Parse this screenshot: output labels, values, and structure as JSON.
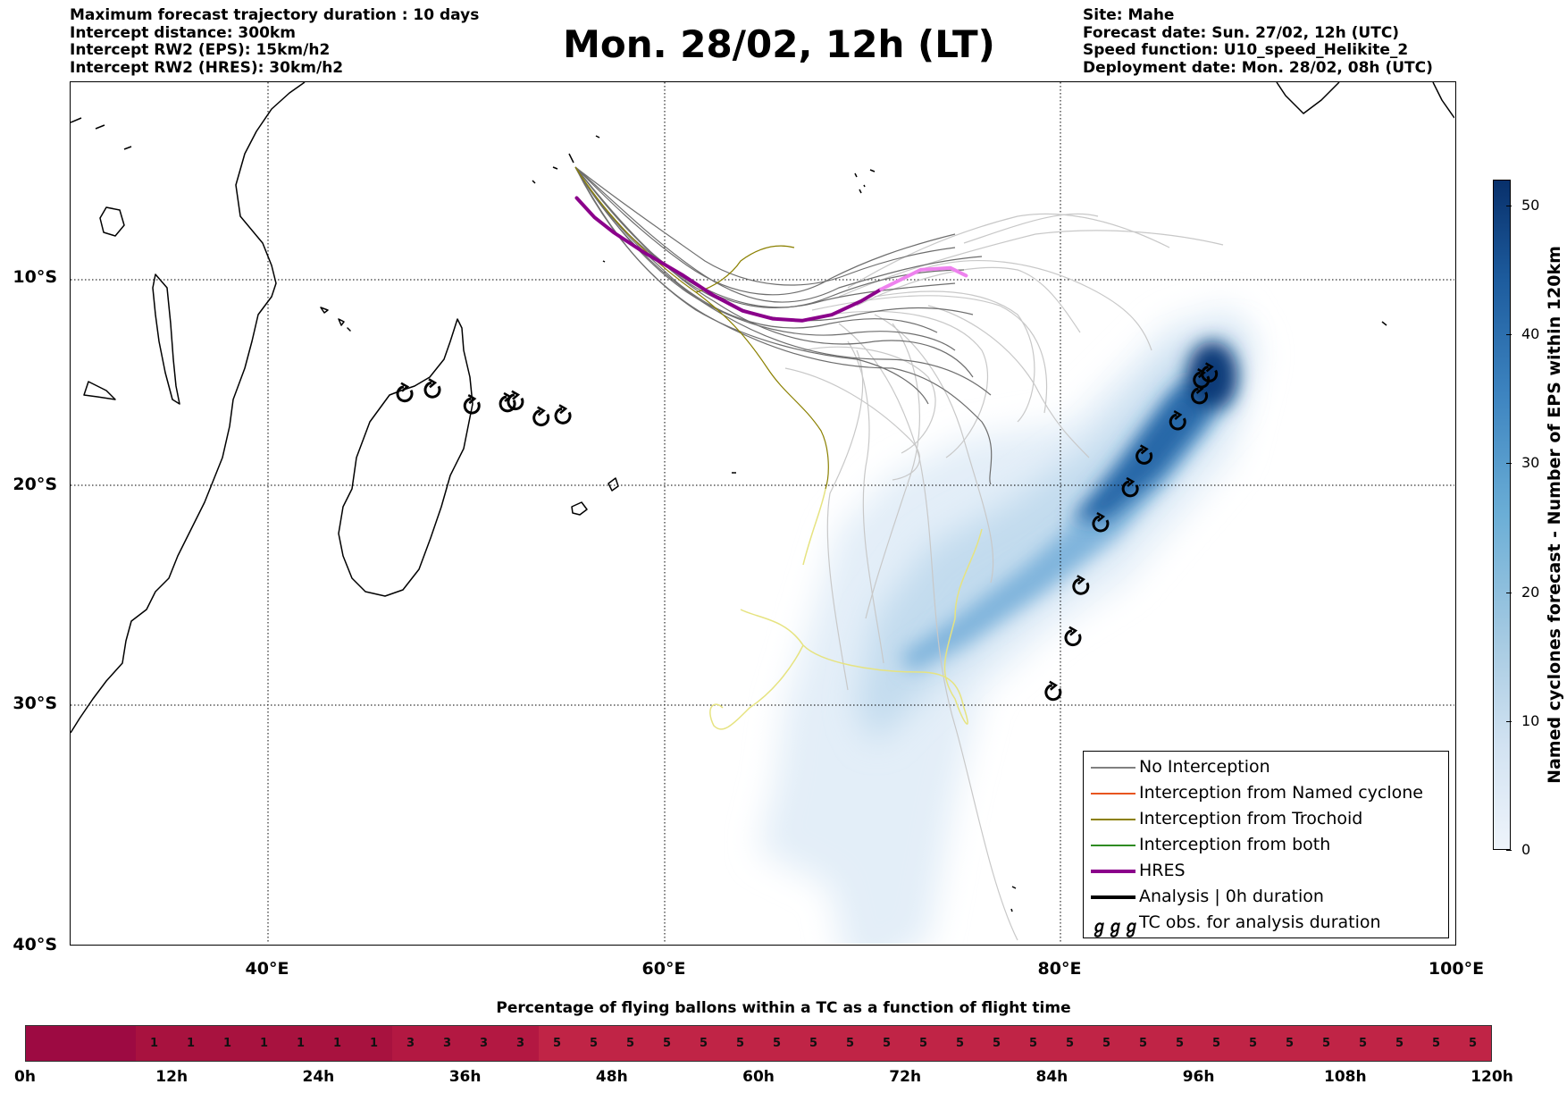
{
  "header_left": {
    "line1": "Maximum forecast trajectory duration : 10 days",
    "line2": "Intercept distance: 300km",
    "line3": "Intercept RW2 (EPS):  15km/h2",
    "line4": "Intercept RW2 (HRES): 30km/h2"
  },
  "title": "Mon. 28/02, 12h (LT)",
  "header_right": {
    "line1": "Site: Mahe",
    "line2": "Forecast date: Sun. 27/02, 12h (UTC)",
    "line3": "Speed function: U10_speed_Helikite_2",
    "line4": "Deployment date: Mon. 28/02, 08h (UTC)"
  },
  "map": {
    "lon_range": [
      30,
      100
    ],
    "lat_range": [
      -40,
      1
    ],
    "lat_labels": [
      "10°S",
      "20°S",
      "30°S",
      "40°S"
    ],
    "lon_labels": [
      "40°E",
      "60°E",
      "80°E",
      "100°E"
    ],
    "gridlines": "dotted",
    "tc_obs_positions": [
      [
        46.9,
        -15.0
      ],
      [
        48.3,
        -14.8
      ],
      [
        50.3,
        -15.6
      ],
      [
        52.1,
        -15.5
      ],
      [
        52.5,
        -15.4
      ],
      [
        53.8,
        -16.2
      ],
      [
        54.9,
        -16.1
      ],
      [
        79.7,
        -29.3
      ],
      [
        80.7,
        -26.8
      ],
      [
        81.1,
        -24.4
      ],
      [
        82.1,
        -21.4
      ],
      [
        83.6,
        -19.7
      ],
      [
        84.3,
        -18.1
      ],
      [
        86.0,
        -16.4
      ],
      [
        87.1,
        -15.1
      ],
      [
        87.2,
        -14.3
      ],
      [
        87.6,
        -14.0
      ]
    ],
    "hres_track": [
      [
        55.6,
        -5.0
      ],
      [
        56.5,
        -6.0
      ],
      [
        57.5,
        -6.8
      ],
      [
        59.0,
        -7.8
      ],
      [
        61.0,
        -9.0
      ],
      [
        62.5,
        -10.0
      ],
      [
        64.0,
        -10.8
      ],
      [
        65.5,
        -11.2
      ],
      [
        67.0,
        -11.3
      ],
      [
        68.5,
        -11.0
      ],
      [
        70.0,
        -10.3
      ],
      [
        71.0,
        -9.7
      ]
    ],
    "hres_continuation_color": "#ee82ee",
    "hres_continuation": [
      [
        71.0,
        -9.7
      ],
      [
        72.0,
        -9.2
      ],
      [
        73.0,
        -8.7
      ],
      [
        74.5,
        -8.6
      ],
      [
        75.3,
        -9.0
      ]
    ]
  },
  "legend": {
    "items": [
      {
        "label": "No Interception",
        "color": "#808080",
        "width": 1.2,
        "icon": "line"
      },
      {
        "label": "Interception from Named cyclone",
        "color": "#e8551f",
        "width": 1.2,
        "icon": "line"
      },
      {
        "label": "Interception from Trochoid",
        "color": "#8b8000",
        "width": 1.2,
        "icon": "line"
      },
      {
        "label": "Interception from both",
        "color": "#2e8b22",
        "width": 1.2,
        "icon": "line"
      },
      {
        "label": "HRES",
        "color": "#8b008b",
        "width": 4,
        "icon": "line"
      },
      {
        "label": "Analysis | 0h duration",
        "color": "#000000",
        "width": 4,
        "icon": "line"
      },
      {
        "label": "TC obs. for analysis duration",
        "color": "#000000",
        "width": 0,
        "icon": "tc-symbols",
        "symbol": "ℊℊℊ"
      }
    ]
  },
  "colorbar": {
    "title": "Named cyclones forecast - Number of EPS within 120km",
    "ticks": [
      "0",
      "10",
      "20",
      "30",
      "40",
      "50"
    ],
    "range": [
      0,
      52
    ]
  },
  "flight_time": {
    "title": "Percentage of flying ballons within a TC as a function of flight time",
    "cells": [
      "",
      "",
      "",
      "1",
      "1",
      "1",
      "1",
      "1",
      "1",
      "1",
      "3",
      "3",
      "3",
      "3",
      "5",
      "5",
      "5",
      "5",
      "5",
      "5",
      "5",
      "5",
      "5",
      "5",
      "5",
      "5",
      "5",
      "5",
      "5",
      "5",
      "5",
      "5",
      "5",
      "5",
      "5",
      "5",
      "5",
      "5",
      "5",
      "5"
    ],
    "tick_labels": [
      "0h",
      "12h",
      "24h",
      "36h",
      "48h",
      "60h",
      "72h",
      "84h",
      "96h",
      "108h",
      "120h"
    ],
    "colors": {
      "empty": "#9d0a42",
      "1": "#a8123f",
      "3": "#b31842",
      "5": "#c02446"
    }
  }
}
